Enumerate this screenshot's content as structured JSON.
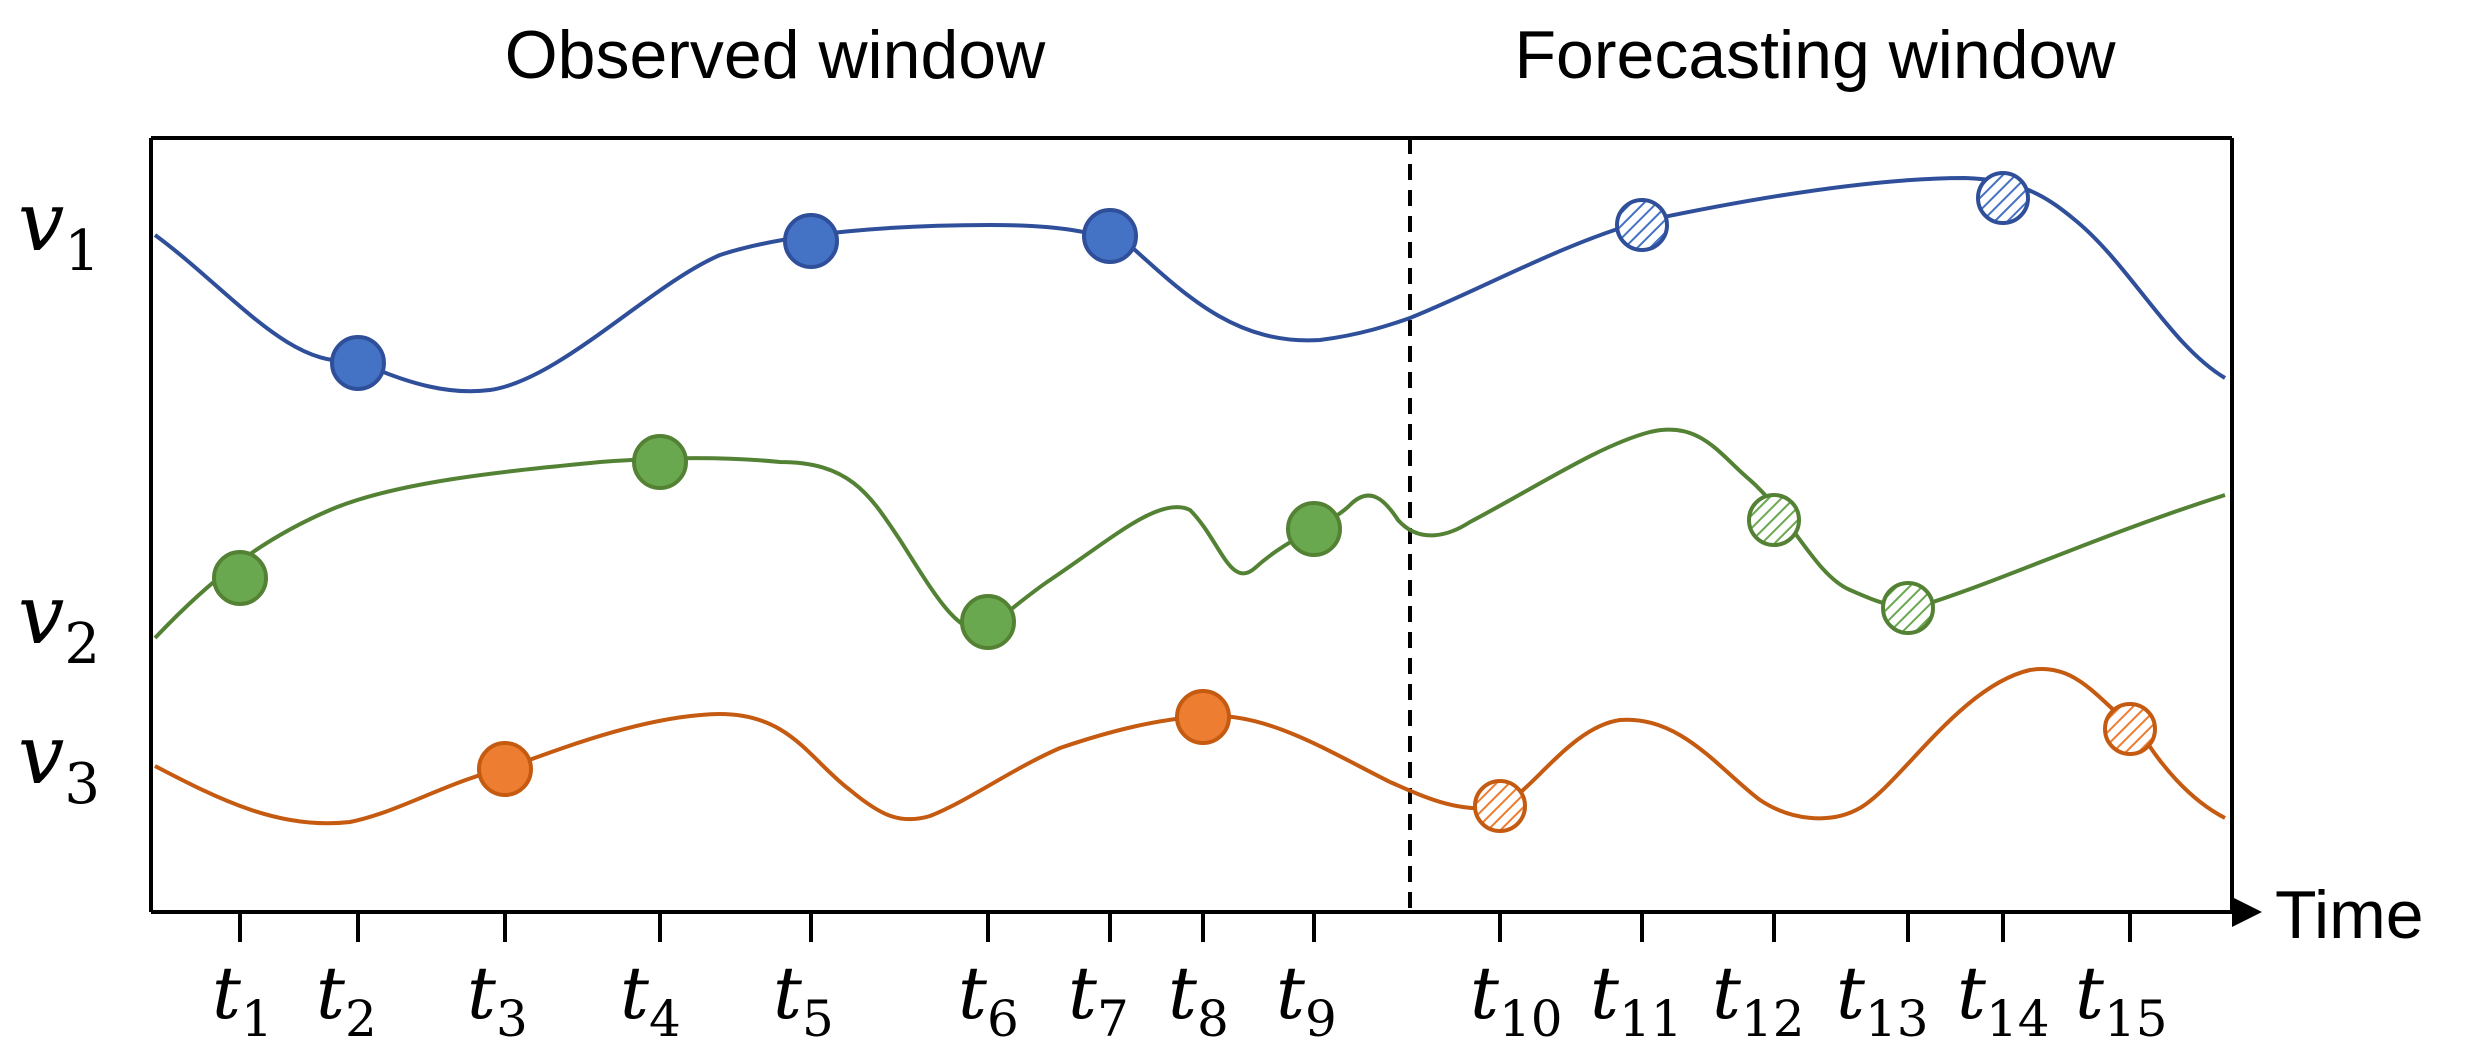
{
  "header": {
    "observed_label": "Observed window",
    "forecast_label": "Forecasting window"
  },
  "axis": {
    "time_label": "Time",
    "ticks": [
      {
        "base": "t",
        "sub": "1"
      },
      {
        "base": "t",
        "sub": "2"
      },
      {
        "base": "t",
        "sub": "3"
      },
      {
        "base": "t",
        "sub": "4"
      },
      {
        "base": "t",
        "sub": "5"
      },
      {
        "base": "t",
        "sub": "6"
      },
      {
        "base": "t",
        "sub": "7"
      },
      {
        "base": "t",
        "sub": "8"
      },
      {
        "base": "t",
        "sub": "9"
      },
      {
        "base": "t",
        "sub": "10"
      },
      {
        "base": "t",
        "sub": "11"
      },
      {
        "base": "t",
        "sub": "12"
      },
      {
        "base": "t",
        "sub": "13"
      },
      {
        "base": "t",
        "sub": "14"
      },
      {
        "base": "t",
        "sub": "15"
      }
    ]
  },
  "variables": [
    {
      "base": "v",
      "sub": "1",
      "color": "#2f4f9a",
      "dot_color": "#4472c4"
    },
    {
      "base": "v",
      "sub": "2",
      "color": "#548235",
      "dot_color": "#6aa84f"
    },
    {
      "base": "v",
      "sub": "3",
      "color": "#c55a11",
      "dot_color": "#ed7d31"
    }
  ]
}
